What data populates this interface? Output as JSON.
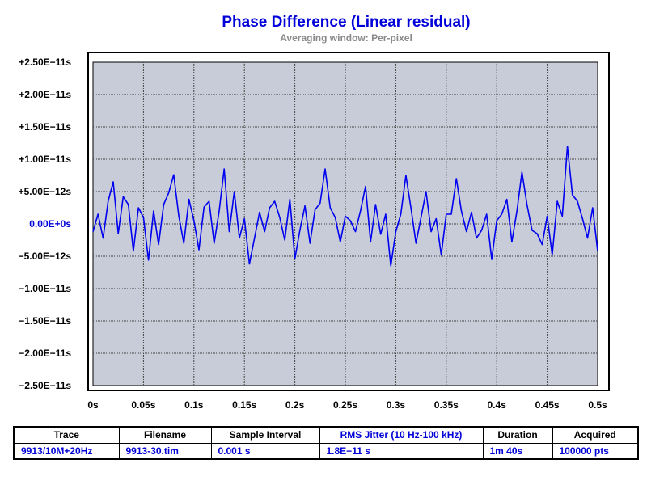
{
  "chart_data": {
    "type": "line",
    "title": "Phase Difference (Linear residual)",
    "subtitle": "Averaging window: Per-pixel",
    "xlabel": "",
    "ylabel": "",
    "xlim": [
      0,
      0.5
    ],
    "ylim": [
      -2.5e-11,
      2.5e-11
    ],
    "grid": true,
    "x_tick_labels": [
      "0s",
      "0.05s",
      "0.1s",
      "0.15s",
      "0.2s",
      "0.25s",
      "0.3s",
      "0.35s",
      "0.4s",
      "0.45s",
      "0.5s"
    ],
    "y_tick_labels": [
      "+2.50E−11s",
      "+2.00E−11s",
      "+1.50E−11s",
      "+1.00E−11s",
      "+5.00E−12s",
      "0.00E+0s",
      "−5.00E−12s",
      "−1.00E−11s",
      "−1.50E−11s",
      "−2.00E−11s",
      "−2.50E−11s"
    ],
    "series": [
      {
        "x": [
          0,
          0.005,
          0.01,
          0.015,
          0.02,
          0.025,
          0.03,
          0.035,
          0.04,
          0.045,
          0.05,
          0.055,
          0.06,
          0.065,
          0.07,
          0.075,
          0.08,
          0.085,
          0.09,
          0.095,
          0.1,
          0.105,
          0.11,
          0.115,
          0.12,
          0.125,
          0.13,
          0.135,
          0.14,
          0.145,
          0.15,
          0.155,
          0.16,
          0.165,
          0.17,
          0.175,
          0.18,
          0.185,
          0.19,
          0.195,
          0.2,
          0.205,
          0.21,
          0.215,
          0.22,
          0.225,
          0.23,
          0.235,
          0.24,
          0.245,
          0.25,
          0.255,
          0.26,
          0.265,
          0.27,
          0.275,
          0.28,
          0.285,
          0.29,
          0.295,
          0.3,
          0.305,
          0.31,
          0.315,
          0.32,
          0.325,
          0.33,
          0.335,
          0.34,
          0.345,
          0.35,
          0.355,
          0.36,
          0.365,
          0.37,
          0.375,
          0.38,
          0.385,
          0.39,
          0.395,
          0.4,
          0.405,
          0.41,
          0.415,
          0.42,
          0.425,
          0.43,
          0.435,
          0.44,
          0.445,
          0.45,
          0.455,
          0.46,
          0.465,
          0.47,
          0.475,
          0.48,
          0.485,
          0.49,
          0.495,
          0.5
        ],
        "values": [
          -1.2e-12,
          1.5e-12,
          -2.2e-12,
          3.5e-12,
          6.5e-12,
          -1.5e-12,
          4.2e-12,
          3e-12,
          -4.2e-12,
          2.5e-12,
          1e-12,
          -5.6e-12,
          2e-12,
          -3.2e-12,
          3e-12,
          4.8e-12,
          7.6e-12,
          1.2e-12,
          -3e-12,
          3.8e-12,
          5e-13,
          -4e-12,
          2.6e-12,
          3.5e-12,
          -3e-12,
          2e-12,
          8.5e-12,
          -1.2e-12,
          5e-12,
          -2.2e-12,
          8e-13,
          -6.2e-12,
          -2.2e-12,
          1.8e-12,
          -1.2e-12,
          2.5e-12,
          3.5e-12,
          1e-12,
          -2.5e-12,
          3.8e-12,
          -5.4e-12,
          -1e-12,
          2.8e-12,
          -3e-12,
          2.2e-12,
          3.2e-12,
          8.5e-12,
          2.5e-12,
          1e-12,
          -2.8e-12,
          1.2e-12,
          5e-13,
          -1.2e-12,
          2e-12,
          5.8e-12,
          -2.8e-12,
          3e-12,
          -1.6e-12,
          1.5e-12,
          -6.5e-12,
          -1.2e-12,
          1.5e-12,
          7.5e-12,
          2.5e-12,
          -3e-12,
          1e-12,
          5e-12,
          -1.2e-12,
          8e-13,
          -4.8e-12,
          1.5e-12,
          1.5e-12,
          7e-12,
          2e-12,
          -1.2e-12,
          1.8e-12,
          -2.2e-12,
          -1e-12,
          1.5e-12,
          -5.5e-12,
          5e-13,
          1.5e-12,
          3.8e-12,
          -2.8e-12,
          2e-12,
          8e-12,
          3e-12,
          -1e-12,
          -1.5e-12,
          -3.2e-12,
          1.2e-12,
          -4.8e-12,
          3.5e-12,
          1.2e-12,
          1.2e-11,
          4.5e-12,
          3.5e-12,
          8e-13,
          -2.2e-12,
          2.5e-12,
          -4.2e-12
        ]
      }
    ]
  },
  "colors": {
    "line": "#0000f0",
    "plot_background": "#c8ccd8",
    "accent": "#0000d8",
    "subtitle": "#8a8a8a"
  },
  "table": {
    "headers": [
      "Trace",
      "Filename",
      "Sample Interval",
      "RMS Jitter (10 Hz-100 kHz)",
      "Duration",
      "Acquired"
    ],
    "values": [
      "9913/10M+20Hz",
      "9913-30.tim",
      "0.001 s",
      "1.8E−11 s",
      "1m 40s",
      "100000 pts"
    ]
  }
}
